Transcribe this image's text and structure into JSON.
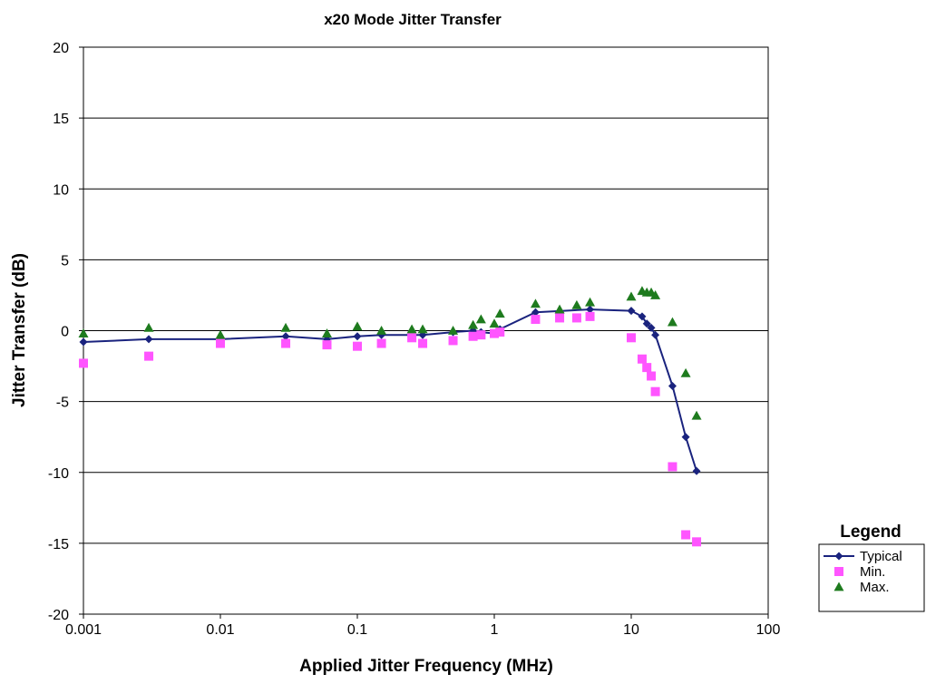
{
  "chart_data": {
    "type": "scatter",
    "title": "x20 Mode Jitter Transfer",
    "xlabel": "Applied Jitter Frequency (MHz)",
    "ylabel": "Jitter Transfer (dB)",
    "xscale": "log",
    "xlim": [
      0.001,
      100
    ],
    "ylim": [
      -20,
      20
    ],
    "xticks": [
      "0.001",
      "0.01",
      "0.1",
      "1",
      "10",
      "100"
    ],
    "yticks": [
      "-20",
      "-15",
      "-10",
      "-5",
      "0",
      "5",
      "10",
      "15",
      "20"
    ],
    "grid": "horizontal",
    "legend_title": "Legend",
    "legend_position": "right",
    "series": [
      {
        "name": "Typical",
        "style": "line-diamond",
        "color": "#1a237e",
        "x": [
          0.001,
          0.003,
          0.01,
          0.03,
          0.06,
          0.1,
          0.15,
          0.3,
          0.5,
          0.7,
          0.8,
          1.0,
          1.1,
          2,
          5,
          10,
          12,
          13,
          14,
          15,
          20,
          25,
          30
        ],
        "y": [
          -0.8,
          -0.6,
          -0.6,
          -0.4,
          -0.6,
          -0.4,
          -0.3,
          -0.3,
          -0.1,
          0.0,
          -0.1,
          -0.2,
          0.1,
          1.3,
          1.5,
          1.4,
          1.0,
          0.5,
          0.2,
          -0.3,
          -3.9,
          -7.5,
          -9.9
        ]
      },
      {
        "name": "Min.",
        "style": "square",
        "color": "#ff55ff",
        "x": [
          0.001,
          0.003,
          0.01,
          0.03,
          0.06,
          0.1,
          0.15,
          0.25,
          0.3,
          0.5,
          0.7,
          0.8,
          1.0,
          1.1,
          2,
          3,
          4,
          5,
          10,
          12,
          13,
          14,
          15,
          20,
          25,
          30
        ],
        "y": [
          -2.3,
          -1.8,
          -0.9,
          -0.9,
          -1.0,
          -1.1,
          -0.9,
          -0.5,
          -0.9,
          -0.7,
          -0.4,
          -0.3,
          -0.2,
          -0.1,
          0.8,
          0.9,
          0.9,
          1.0,
          -0.5,
          -2.0,
          -2.6,
          -3.2,
          -4.3,
          -9.6,
          -14.4,
          -14.9
        ]
      },
      {
        "name": "Max.",
        "style": "triangle",
        "color": "#1e7b1e",
        "x": [
          0.001,
          0.003,
          0.01,
          0.03,
          0.06,
          0.1,
          0.15,
          0.25,
          0.3,
          0.5,
          0.7,
          0.8,
          1.0,
          1.1,
          2,
          3,
          4,
          5,
          10,
          12,
          13,
          14,
          15,
          20,
          25,
          30
        ],
        "y": [
          -0.2,
          0.2,
          -0.3,
          0.2,
          -0.2,
          0.3,
          0.0,
          0.1,
          0.1,
          0.0,
          0.4,
          0.8,
          0.5,
          1.2,
          1.9,
          1.5,
          1.8,
          2.0,
          2.4,
          2.8,
          2.7,
          2.7,
          2.5,
          0.6,
          -3.0,
          -6.0
        ]
      }
    ]
  }
}
